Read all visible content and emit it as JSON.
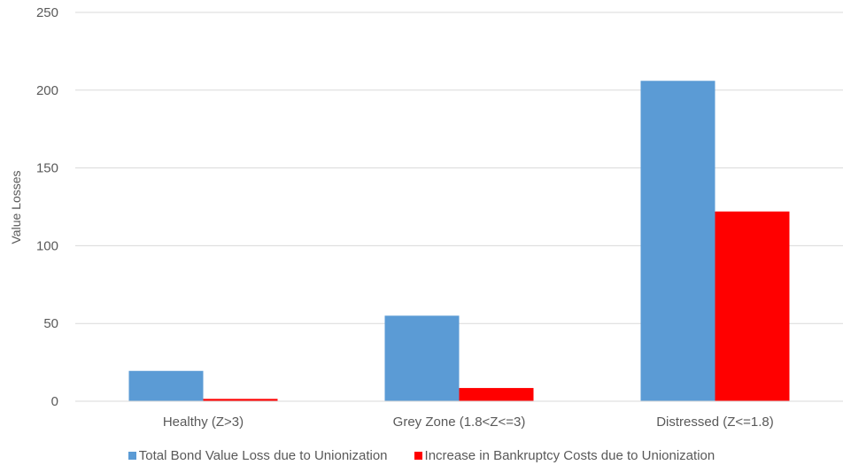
{
  "chart_data": {
    "type": "bar",
    "title": "",
    "xlabel": "",
    "ylabel": "Value Losses",
    "ylim": [
      0,
      250
    ],
    "yticks": [
      0,
      50,
      100,
      150,
      200,
      250
    ],
    "grid": true,
    "legend_position": "bottom",
    "categories": [
      "Healthy (Z>3)",
      "Grey Zone (1.8<Z<=3)",
      "Distressed (Z<=1.8)"
    ],
    "series": [
      {
        "name": "Total Bond Value Loss due to Unionization",
        "color": "#5b9bd5",
        "values": [
          19.5,
          55,
          206
        ]
      },
      {
        "name": "Increase in Bankruptcy Costs due to Unionization",
        "color": "#ff0000",
        "values": [
          1.5,
          8.5,
          122
        ]
      }
    ]
  }
}
